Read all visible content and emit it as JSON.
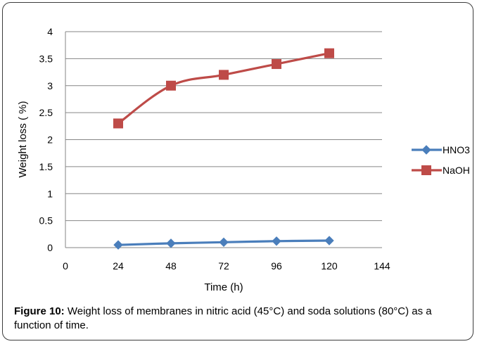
{
  "chart_data": {
    "type": "line",
    "x": [
      24,
      48,
      72,
      96,
      120
    ],
    "series": [
      {
        "name": "HNO3",
        "values": [
          0.05,
          0.08,
          0.1,
          0.12,
          0.13
        ],
        "color": "#4a7ebb",
        "marker": "diamond"
      },
      {
        "name": "NaOH",
        "values": [
          2.3,
          3.0,
          3.2,
          3.4,
          3.6
        ],
        "color": "#be4b48",
        "marker": "square"
      }
    ],
    "xlabel": "Time (h)",
    "ylabel": "Weight loss ( %)",
    "xlim": [
      0,
      144
    ],
    "ylim": [
      0,
      4
    ],
    "xticks": [
      "0",
      "24",
      "48",
      "72",
      "96",
      "120",
      "144"
    ],
    "yticks": [
      "0",
      "0.5",
      "1",
      "1.5",
      "2",
      "2.5",
      "3",
      "3.5",
      "4"
    ],
    "grid": "horizontal",
    "legend_position": "right"
  },
  "caption": {
    "label": "Figure 10:",
    "text": " Weight loss of membranes in nitric acid (45°C) and soda solutions (80°C) as a function of time."
  }
}
